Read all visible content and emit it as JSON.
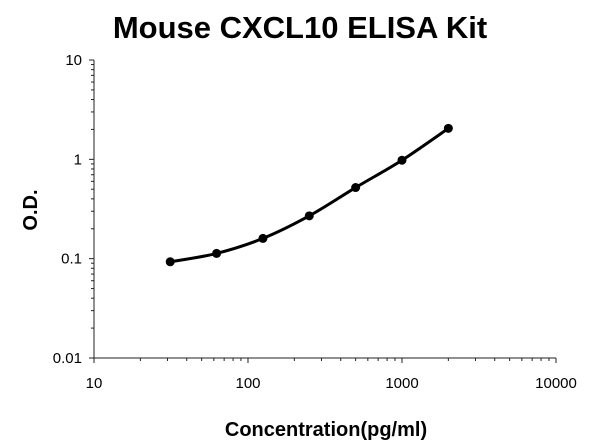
{
  "chart_data": {
    "type": "scatter",
    "title": "Mouse CXCL10 ELISA Kit",
    "xlabel": "Concentration(pg/ml)",
    "ylabel": "O.D.",
    "xscale": "log",
    "yscale": "log",
    "xlim": [
      10,
      10000
    ],
    "ylim": [
      0.01,
      10
    ],
    "x_ticks": [
      "10",
      "100",
      "1000",
      "10000"
    ],
    "y_ticks": [
      "0.01",
      "0.1",
      "1",
      "10"
    ],
    "grid": false,
    "legend": "none",
    "line": "smooth-fit",
    "colors": {
      "line": "#000000",
      "points": "#000000"
    },
    "series": [
      {
        "x": [
          31.25,
          62.5,
          125,
          250,
          500,
          1000,
          2000
        ],
        "y": [
          0.093,
          0.113,
          0.16,
          0.27,
          0.52,
          0.98,
          2.05
        ]
      }
    ]
  }
}
